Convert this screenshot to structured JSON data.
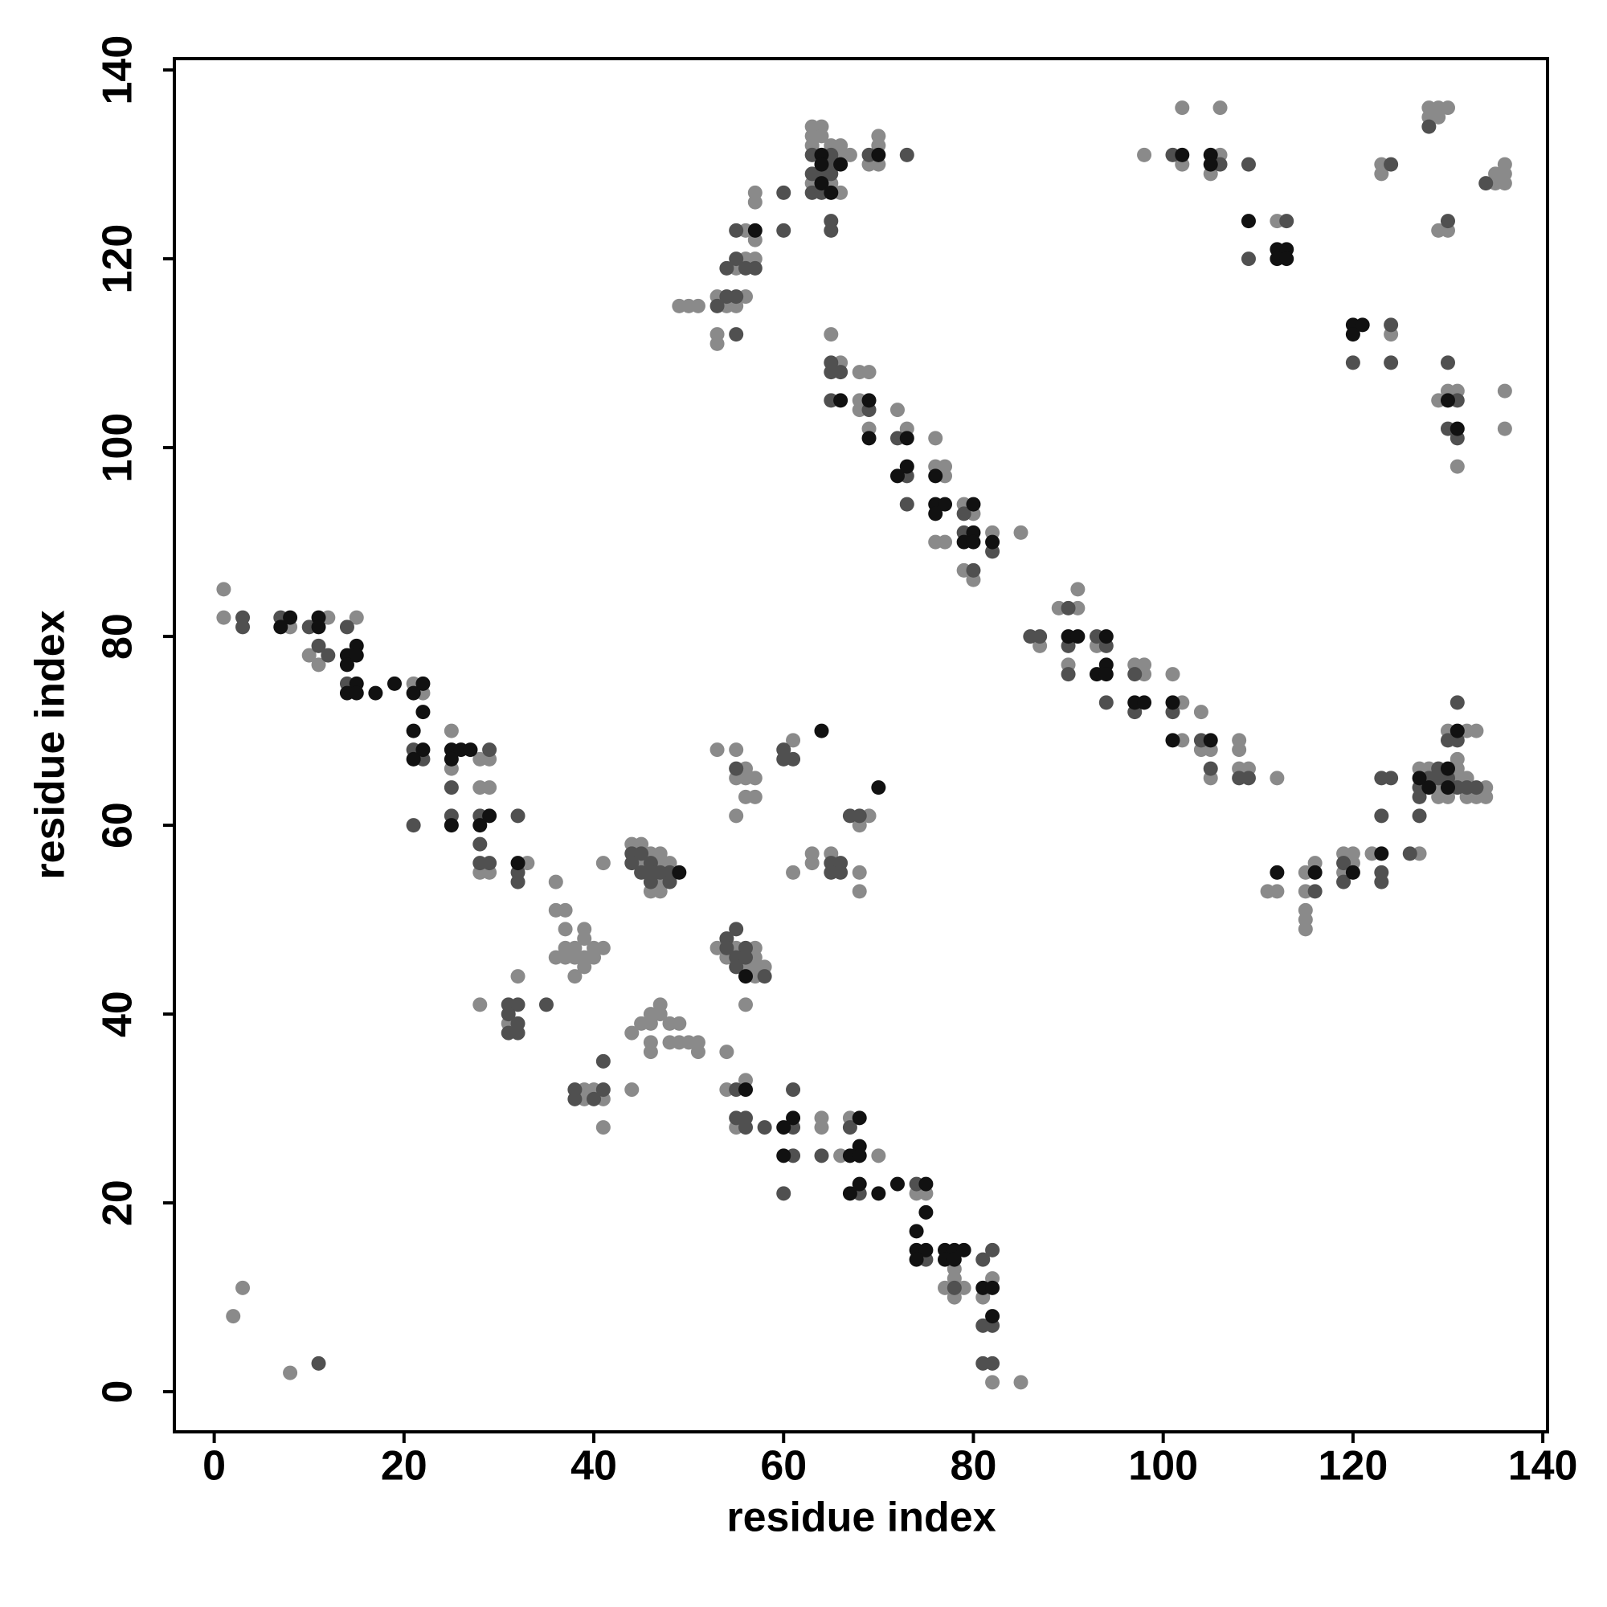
{
  "chart_data": {
    "type": "scatter",
    "x_label": "residue index",
    "y_label": "residue index",
    "xlim": [
      -4.2,
      140.5
    ],
    "ylim": [
      -4.25,
      141.2
    ],
    "xticks": [
      0,
      20,
      40,
      60,
      80,
      100,
      120,
      140
    ],
    "yticks": [
      0,
      20,
      40,
      60,
      80,
      100,
      120,
      140
    ],
    "series": [
      {
        "color": "#8a8a8a",
        "x": [
          2,
          3,
          8,
          1,
          1,
          8,
          12,
          10,
          11,
          15,
          21,
          22,
          25,
          25,
          28,
          29,
          28,
          29,
          28,
          29,
          33,
          36,
          32,
          28,
          31,
          36,
          37,
          37,
          37,
          38,
          36,
          37,
          38,
          39,
          39,
          39,
          40,
          41,
          40,
          38,
          39,
          39,
          39,
          40,
          41,
          41,
          44,
          44,
          45,
          46,
          46,
          47,
          46,
          46,
          47,
          48,
          49,
          48,
          49,
          50,
          51,
          51,
          54,
          44,
          45,
          46,
          47,
          45,
          47,
          48,
          47,
          46,
          47,
          41,
          53,
          55,
          57,
          54,
          57,
          56,
          57,
          58,
          57,
          56,
          54,
          56,
          55,
          64,
          64,
          66,
          67,
          70,
          74,
          75,
          78,
          77,
          78,
          79,
          78,
          82,
          81,
          82,
          85,
          53,
          55,
          56,
          55,
          56,
          57,
          56,
          57,
          55,
          61,
          61,
          63,
          65,
          63,
          68,
          69,
          68,
          68,
          49,
          50,
          51,
          53,
          54,
          55,
          53,
          53,
          56,
          56,
          55,
          57,
          56,
          57,
          57,
          57,
          63,
          64,
          63,
          64,
          63,
          65,
          66,
          66,
          67,
          63,
          65,
          66,
          69,
          70,
          70,
          70,
          65,
          66,
          68,
          69,
          68,
          68,
          69,
          72,
          73,
          76,
          76,
          77,
          77,
          76,
          77,
          79,
          80,
          79,
          80,
          82,
          85,
          87,
          89,
          91,
          91,
          90,
          93,
          97,
          98,
          98,
          101,
          102,
          104,
          102,
          104,
          105,
          105,
          108,
          108,
          108,
          109,
          112,
          111,
          112,
          115,
          116,
          115,
          115,
          115,
          115,
          119,
          120,
          120,
          119,
          122,
          127,
          127,
          128,
          129,
          129,
          130,
          131,
          131,
          131,
          132,
          132,
          133,
          134,
          134,
          130,
          132,
          133,
          98,
          102,
          102,
          106,
          105,
          106,
          112,
          124,
          123,
          123,
          128,
          129,
          130,
          128,
          129,
          129,
          130,
          135,
          136,
          135,
          136,
          136,
          129,
          130,
          131,
          131,
          136,
          136
        ],
        "y": [
          8,
          11,
          2,
          85,
          82,
          81,
          82,
          78,
          77,
          82,
          75,
          74,
          70,
          66,
          67,
          67,
          64,
          64,
          55,
          55,
          56,
          54,
          44,
          41,
          39,
          51,
          51,
          49,
          47,
          47,
          46,
          46,
          46,
          49,
          48,
          46,
          47,
          47,
          46,
          44,
          45,
          32,
          31,
          32,
          31,
          28,
          32,
          38,
          39,
          40,
          39,
          41,
          37,
          36,
          40,
          39,
          39,
          37,
          37,
          37,
          37,
          36,
          36,
          58,
          58,
          57,
          57,
          56,
          56,
          56,
          54,
          53,
          53,
          56,
          47,
          47,
          47,
          46,
          46,
          45,
          45,
          45,
          44,
          41,
          32,
          33,
          28,
          29,
          28,
          25,
          29,
          25,
          21,
          21,
          13,
          11,
          12,
          11,
          10,
          12,
          10,
          1,
          1,
          68,
          68,
          66,
          65,
          65,
          65,
          63,
          63,
          61,
          69,
          55,
          57,
          57,
          56,
          60,
          61,
          55,
          53,
          115,
          115,
          115,
          116,
          115,
          115,
          112,
          111,
          116,
          120,
          119,
          120,
          123,
          122,
          126,
          127,
          134,
          134,
          133,
          133,
          132,
          132,
          132,
          131,
          131,
          128,
          128,
          127,
          130,
          130,
          133,
          132,
          112,
          109,
          108,
          108,
          105,
          104,
          102,
          104,
          102,
          101,
          98,
          98,
          97,
          90,
          90,
          94,
          93,
          87,
          86,
          91,
          91,
          79,
          83,
          85,
          83,
          77,
          79,
          77,
          77,
          76,
          76,
          73,
          72,
          69,
          68,
          68,
          65,
          69,
          68,
          66,
          66,
          65,
          53,
          53,
          55,
          56,
          53,
          51,
          50,
          49,
          57,
          57,
          56,
          55,
          57,
          57,
          66,
          66,
          64,
          63,
          63,
          67,
          66,
          65,
          65,
          63,
          63,
          64,
          63,
          70,
          70,
          70,
          131,
          130,
          136,
          131,
          129,
          136,
          124,
          112,
          130,
          129,
          136,
          136,
          136,
          135,
          135,
          123,
          123,
          129,
          130,
          128,
          128,
          129,
          105,
          106,
          106,
          98,
          106,
          102
        ]
      },
      {
        "color": "#505050",
        "x": [
          11,
          3,
          3,
          7,
          10,
          11,
          12,
          14,
          14,
          21,
          22,
          25,
          25,
          21,
          29,
          28,
          28,
          28,
          29,
          32,
          32,
          32,
          31,
          32,
          31,
          32,
          31,
          32,
          35,
          38,
          38,
          41,
          40,
          41,
          44,
          45,
          44,
          46,
          45,
          46,
          47,
          48,
          46,
          48,
          54,
          55,
          54,
          56,
          55,
          56,
          55,
          58,
          55,
          55,
          56,
          56,
          58,
          61,
          61,
          61,
          60,
          64,
          67,
          68,
          74,
          75,
          78,
          81,
          82,
          81,
          82,
          81,
          82,
          55,
          60,
          60,
          61,
          65,
          66,
          65,
          66,
          67,
          68,
          54,
          53,
          55,
          55,
          54,
          55,
          56,
          57,
          55,
          60,
          60,
          63,
          65,
          65,
          63,
          64,
          65,
          63,
          64,
          65,
          65,
          69,
          73,
          65,
          65,
          66,
          65,
          69,
          72,
          73,
          73,
          79,
          79,
          80,
          82,
          86,
          87,
          90,
          90,
          90,
          93,
          94,
          94,
          97,
          97,
          101,
          104,
          105,
          108,
          109,
          116,
          119,
          119,
          123,
          123,
          123,
          123,
          124,
          126,
          127,
          127,
          127,
          128,
          129,
          129,
          130,
          131,
          132,
          133,
          130,
          131,
          131,
          101,
          106,
          109,
          109,
          113,
          124,
          120,
          124,
          124,
          128,
          130,
          134,
          131,
          130,
          130,
          131
        ],
        "y": [
          3,
          82,
          81,
          82,
          81,
          79,
          78,
          81,
          75,
          68,
          67,
          64,
          61,
          60,
          68,
          61,
          58,
          56,
          56,
          61,
          55,
          54,
          41,
          41,
          40,
          39,
          38,
          38,
          41,
          32,
          31,
          32,
          31,
          35,
          57,
          57,
          56,
          56,
          55,
          55,
          55,
          55,
          54,
          54,
          48,
          49,
          47,
          47,
          46,
          46,
          45,
          44,
          32,
          29,
          29,
          28,
          28,
          28,
          32,
          25,
          21,
          25,
          28,
          21,
          22,
          14,
          11,
          14,
          15,
          7,
          7,
          3,
          3,
          66,
          68,
          67,
          67,
          56,
          56,
          55,
          55,
          61,
          61,
          116,
          115,
          112,
          116,
          119,
          120,
          119,
          119,
          123,
          123,
          127,
          131,
          131,
          130,
          129,
          129,
          129,
          127,
          127,
          124,
          123,
          131,
          131,
          109,
          108,
          108,
          105,
          104,
          101,
          97,
          94,
          93,
          91,
          87,
          89,
          80,
          80,
          83,
          79,
          76,
          80,
          79,
          73,
          76,
          72,
          72,
          69,
          66,
          65,
          65,
          53,
          56,
          54,
          55,
          54,
          61,
          65,
          65,
          57,
          64,
          63,
          61,
          65,
          66,
          65,
          65,
          64,
          64,
          64,
          69,
          69,
          73,
          131,
          130,
          130,
          120,
          124,
          113,
          109,
          109,
          130,
          134,
          124,
          128,
          105,
          109,
          102,
          101
        ]
      },
      {
        "color": "#111111",
        "x": [
          7,
          8,
          11,
          11,
          14,
          15,
          15,
          14,
          15,
          14,
          15,
          17,
          19,
          21,
          22,
          22,
          21,
          22,
          21,
          25,
          26,
          25,
          27,
          25,
          29,
          28,
          32,
          49,
          56,
          56,
          60,
          61,
          60,
          68,
          67,
          68,
          68,
          68,
          67,
          70,
          72,
          75,
          75,
          74,
          74,
          75,
          74,
          77,
          78,
          79,
          77,
          78,
          81,
          82,
          82,
          64,
          70,
          57,
          64,
          64,
          66,
          64,
          65,
          70,
          66,
          69,
          69,
          73,
          72,
          73,
          76,
          76,
          77,
          76,
          80,
          80,
          79,
          80,
          82,
          90,
          91,
          94,
          93,
          94,
          94,
          97,
          98,
          101,
          101,
          105,
          112,
          116,
          120,
          123,
          127,
          128,
          130,
          130,
          131,
          102,
          105,
          105,
          109,
          112,
          113,
          112,
          113,
          120,
          121,
          120,
          130,
          131
        ],
        "y": [
          81,
          82,
          82,
          81,
          78,
          79,
          78,
          77,
          75,
          74,
          74,
          74,
          75,
          74,
          75,
          72,
          70,
          68,
          67,
          68,
          68,
          67,
          68,
          60,
          61,
          60,
          56,
          55,
          44,
          32,
          28,
          29,
          25,
          29,
          25,
          26,
          25,
          22,
          21,
          21,
          22,
          22,
          19,
          17,
          15,
          15,
          14,
          15,
          15,
          15,
          14,
          14,
          11,
          11,
          8,
          70,
          64,
          123,
          131,
          130,
          130,
          128,
          127,
          131,
          105,
          105,
          101,
          101,
          97,
          98,
          97,
          94,
          94,
          93,
          94,
          91,
          90,
          90,
          90,
          80,
          80,
          80,
          76,
          77,
          76,
          73,
          73,
          73,
          69,
          69,
          55,
          55,
          55,
          57,
          65,
          64,
          66,
          64,
          70,
          131,
          131,
          130,
          124,
          121,
          121,
          120,
          120,
          113,
          113,
          112,
          105,
          102
        ]
      }
    ]
  }
}
